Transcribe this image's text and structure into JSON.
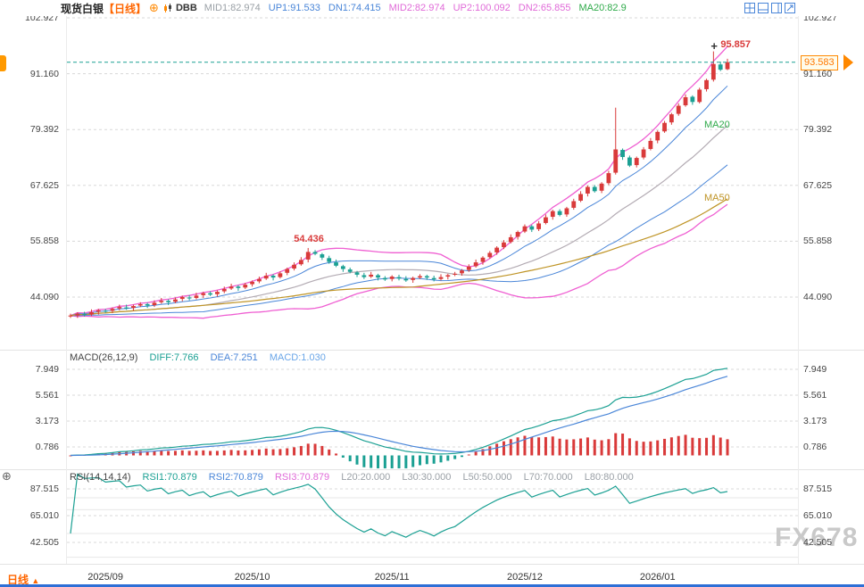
{
  "header": {
    "symbol": "现货白银",
    "period": "【日线】",
    "plus_icon": "⊕",
    "indicator_name": "DBB",
    "values": [
      {
        "text": "MID1:82.974",
        "color": "#9aa0a6"
      },
      {
        "text": "UP1:91.533",
        "color": "#4a86d8"
      },
      {
        "text": "DN1:74.415",
        "color": "#4a86d8"
      },
      {
        "text": "MID2:82.974",
        "color": "#e06ad8"
      },
      {
        "text": "UP2:100.092",
        "color": "#e06ad8"
      },
      {
        "text": "DN2:65.855",
        "color": "#e06ad8"
      },
      {
        "text": "MA20:82.9",
        "color": "#2faa4a"
      }
    ]
  },
  "macd": {
    "title": "MACD(26,12,9)",
    "diff": "DIFF:7.766",
    "dea": "DEA:7.251",
    "macd": "MACD:1.030"
  },
  "rsi": {
    "title": "RSI(14,14,14)",
    "rsi1": "RSI1:70.879",
    "rsi2": "RSI2:70.879",
    "rsi3": "RSI3:70.879",
    "l20": "L20:20.000",
    "l30": "L30:30.000",
    "l50": "L50:50.000",
    "l70": "L70:70.000",
    "l80": "L80:80.000"
  },
  "annotations": {
    "peak_high": "95.857",
    "oct_peak": "54.436",
    "last_price": "93.583",
    "ma20_label": "MA20",
    "ma50_label": "MA50",
    "cursor_cross": "+"
  },
  "footer": {
    "tab_label": "日线",
    "tab_arrow": "▲"
  },
  "watermark": "FX678",
  "icons": {
    "target": "⊕"
  },
  "colors": {
    "up": "#d93a3a",
    "down": "#1ba093",
    "band2": "#ef5fd2",
    "band1": "#4a86d8",
    "mid": "#b3abb3",
    "ma50": "#bf9426",
    "diff": "#1ba093",
    "dea": "#4a86d8",
    "grid": "#d8d8d8",
    "rsi_line": "#1ba093",
    "last_line": "#1ba093"
  },
  "chart_data": {
    "type": "candlestick",
    "title": "现货白银 日线",
    "x_labels": [
      "2025/09",
      "2025/10",
      "2025/11",
      "2025/12",
      "2026/01"
    ],
    "month_tick_indices": [
      5,
      26,
      46,
      65,
      84
    ],
    "y_ticks_main": [
      "102.927",
      "91.160",
      "79.392",
      "67.625",
      "55.858",
      "44.090"
    ],
    "y_ticks_macd": [
      "7.949",
      "5.561",
      "3.173",
      "0.786"
    ],
    "y_ticks_rsi": [
      "87.515",
      "65.010",
      "42.505"
    ],
    "rsi_ref_levels": [
      80,
      70,
      50,
      30
    ],
    "ylim_main": [
      44.09,
      102.927
    ],
    "last_price": 93.583,
    "high_annotation": 95.857,
    "oct_peak_annotation": 54.436,
    "indicators": {
      "boll_period": 20,
      "ma50_period": 50,
      "macd_params": [
        26,
        12,
        9
      ],
      "rsi_params": [
        14,
        14,
        14
      ]
    },
    "candles": [
      [
        40.0,
        40.6,
        39.7,
        40.2
      ],
      [
        40.2,
        40.9,
        39.7,
        40.6
      ],
      [
        40.5,
        41.0,
        40.0,
        40.4
      ],
      [
        40.4,
        41.5,
        40.1,
        40.9
      ],
      [
        41.0,
        41.6,
        40.4,
        41.3
      ],
      [
        41.2,
        41.6,
        40.8,
        41.1
      ],
      [
        41.2,
        41.9,
        40.7,
        41.6
      ],
      [
        41.7,
        42.5,
        41.3,
        42.0
      ],
      [
        41.9,
        42.5,
        41.4,
        41.7
      ],
      [
        41.8,
        42.5,
        41.2,
        42.2
      ],
      [
        42.3,
        43.0,
        42.0,
        42.6
      ],
      [
        42.6,
        42.9,
        41.8,
        42.3
      ],
      [
        42.4,
        43.4,
        42.0,
        42.9
      ],
      [
        43.0,
        43.9,
        42.7,
        43.3
      ],
      [
        43.3,
        43.6,
        42.4,
        43.0
      ],
      [
        43.1,
        44.0,
        42.8,
        43.6
      ],
      [
        43.7,
        44.4,
        43.2,
        44.1
      ],
      [
        44.0,
        44.5,
        43.4,
        43.8
      ],
      [
        43.9,
        45.0,
        43.6,
        44.4
      ],
      [
        44.5,
        45.2,
        43.9,
        44.9
      ],
      [
        44.9,
        45.3,
        44.3,
        44.6
      ],
      [
        44.7,
        45.5,
        44.2,
        45.2
      ],
      [
        45.3,
        46.3,
        44.9,
        45.8
      ],
      [
        45.9,
        46.9,
        45.6,
        46.3
      ],
      [
        46.3,
        46.6,
        45.4,
        46.0
      ],
      [
        46.1,
        47.1,
        45.8,
        46.7
      ],
      [
        46.8,
        47.6,
        46.3,
        47.3
      ],
      [
        47.4,
        48.4,
        47.0,
        47.9
      ],
      [
        48.0,
        49.2,
        47.7,
        48.6
      ],
      [
        48.6,
        48.9,
        47.6,
        48.2
      ],
      [
        48.3,
        49.5,
        48.0,
        49.1
      ],
      [
        49.2,
        50.3,
        48.7,
        50.0
      ],
      [
        50.1,
        51.4,
        49.7,
        50.9
      ],
      [
        51.0,
        52.5,
        50.7,
        51.9
      ],
      [
        52.0,
        54.436,
        51.4,
        53.6
      ],
      [
        53.6,
        54.0,
        52.9,
        53.2
      ],
      [
        53.1,
        53.4,
        51.9,
        52.4
      ],
      [
        52.3,
        52.8,
        51.1,
        51.5
      ],
      [
        51.4,
        52.0,
        50.4,
        50.7
      ],
      [
        50.6,
        50.9,
        49.4,
        50.0
      ],
      [
        49.9,
        50.3,
        49.1,
        49.4
      ],
      [
        49.3,
        49.6,
        48.3,
        48.8
      ],
      [
        48.7,
        49.2,
        47.9,
        48.3
      ],
      [
        48.4,
        49.4,
        48.1,
        48.8
      ],
      [
        48.7,
        49.0,
        47.6,
        48.2
      ],
      [
        48.1,
        48.5,
        47.5,
        47.8
      ],
      [
        47.9,
        48.7,
        47.4,
        48.4
      ],
      [
        48.3,
        48.8,
        47.6,
        48.0
      ],
      [
        47.9,
        48.5,
        47.3,
        47.6
      ],
      [
        47.7,
        48.4,
        47.1,
        48.1
      ],
      [
        48.2,
        48.9,
        47.9,
        48.5
      ],
      [
        48.5,
        48.8,
        47.7,
        48.2
      ],
      [
        48.1,
        48.6,
        47.4,
        47.8
      ],
      [
        47.9,
        48.9,
        47.6,
        48.3
      ],
      [
        48.4,
        49.0,
        47.8,
        48.7
      ],
      [
        48.8,
        49.4,
        48.5,
        49.0
      ],
      [
        49.1,
        50.0,
        48.6,
        49.7
      ],
      [
        49.8,
        51.0,
        49.4,
        50.5
      ],
      [
        50.6,
        52.0,
        50.3,
        51.4
      ],
      [
        51.5,
        52.7,
        50.9,
        52.4
      ],
      [
        52.5,
        53.8,
        52.2,
        53.4
      ],
      [
        53.5,
        54.8,
        53.0,
        54.5
      ],
      [
        54.6,
        56.1,
        54.2,
        55.6
      ],
      [
        55.7,
        57.3,
        55.4,
        56.7
      ],
      [
        56.8,
        58.1,
        56.2,
        57.8
      ],
      [
        57.9,
        59.4,
        57.6,
        59.0
      ],
      [
        59.0,
        59.3,
        57.8,
        58.3
      ],
      [
        58.4,
        60.1,
        58.0,
        59.6
      ],
      [
        59.7,
        61.5,
        59.4,
        60.9
      ],
      [
        61.0,
        62.5,
        60.4,
        62.2
      ],
      [
        62.2,
        62.6,
        61.1,
        61.4
      ],
      [
        61.5,
        63.1,
        61.0,
        62.8
      ],
      [
        62.9,
        64.8,
        62.5,
        64.3
      ],
      [
        64.4,
        66.4,
        64.1,
        65.8
      ],
      [
        65.9,
        67.6,
        65.3,
        67.3
      ],
      [
        67.3,
        67.7,
        66.1,
        66.4
      ],
      [
        66.5,
        68.3,
        66.0,
        68.0
      ],
      [
        68.1,
        70.7,
        67.7,
        70.2
      ],
      [
        70.3,
        84.0,
        69.9,
        75.2
      ],
      [
        75.1,
        75.4,
        73.0,
        73.6
      ],
      [
        73.5,
        73.9,
        71.5,
        71.8
      ],
      [
        71.9,
        73.7,
        71.4,
        73.4
      ],
      [
        73.5,
        75.7,
        73.1,
        75.2
      ],
      [
        75.3,
        77.6,
        75.0,
        77.0
      ],
      [
        77.1,
        79.2,
        76.5,
        78.9
      ],
      [
        79.0,
        81.2,
        78.7,
        80.8
      ],
      [
        80.9,
        82.9,
        80.4,
        82.6
      ],
      [
        82.7,
        84.9,
        82.3,
        84.4
      ],
      [
        84.5,
        86.8,
        84.2,
        86.2
      ],
      [
        86.3,
        86.6,
        84.6,
        85.2
      ],
      [
        85.2,
        88.2,
        84.9,
        87.8
      ],
      [
        87.9,
        90.1,
        87.4,
        89.8
      ],
      [
        89.9,
        95.857,
        89.5,
        93.2
      ],
      [
        93.1,
        93.7,
        91.7,
        92.0
      ],
      [
        92.1,
        94.3,
        91.9,
        93.583
      ]
    ]
  }
}
